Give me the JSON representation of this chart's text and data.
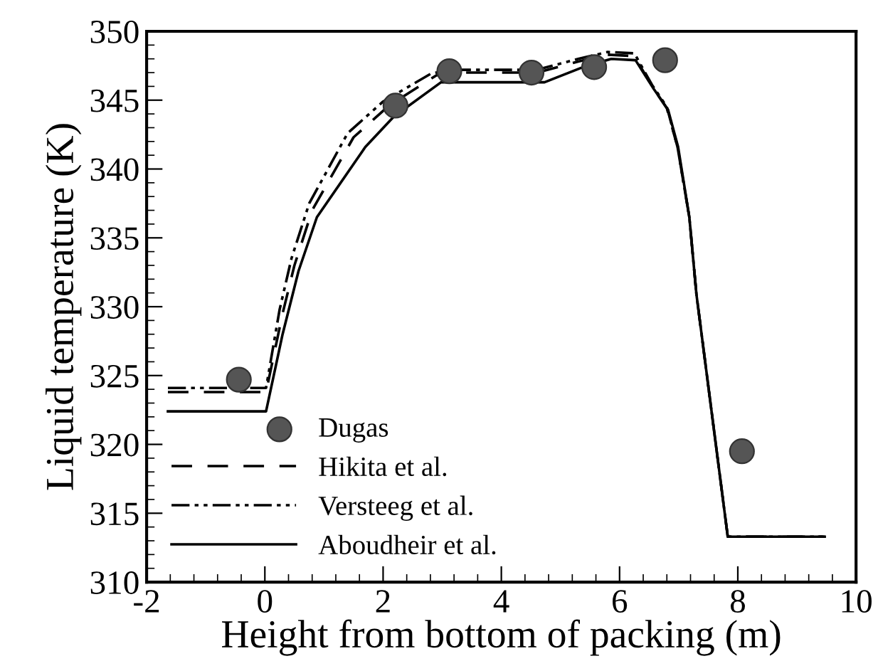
{
  "chart_data": {
    "type": "line",
    "xlabel": "Height from bottom of packing (m)",
    "ylabel": "Liquid temperature (K)",
    "xlim": [
      -2,
      10
    ],
    "ylim": [
      310,
      350
    ],
    "xticks": [
      -2,
      0,
      2,
      4,
      6,
      8,
      10
    ],
    "yticks": [
      310,
      315,
      320,
      325,
      330,
      335,
      340,
      345,
      350
    ],
    "grid": false,
    "legend": "bottom left",
    "series": [
      {
        "name": "Dugas",
        "type": "scatter",
        "marker": "circle",
        "color": "#555555",
        "x": [
          -0.44,
          2.21,
          3.12,
          4.51,
          5.57,
          6.77,
          8.07
        ],
        "values": [
          324.7,
          344.6,
          347.1,
          347.0,
          347.4,
          347.9,
          319.5
        ]
      },
      {
        "name": "Hikita et al.",
        "line_style": "dashed",
        "color": "#000000",
        "x": [
          -1.64,
          0.02,
          0.3,
          0.5,
          0.8,
          1.5,
          2.1,
          2.9,
          3.1,
          4.6,
          5.3,
          5.8,
          6.25,
          6.55,
          6.8,
          6.98,
          7.18,
          7.3,
          7.83,
          9.47
        ],
        "values": [
          323.8,
          323.8,
          329.5,
          333.0,
          337.0,
          342.3,
          344.6,
          346.8,
          347.0,
          347.0,
          347.8,
          348.3,
          348.2,
          346.0,
          344.4,
          341.6,
          336.5,
          330.9,
          313.3,
          313.3
        ]
      },
      {
        "name": "Versteeg et al.",
        "line_style": "dashdot",
        "color": "#000000",
        "x": [
          -1.64,
          0.02,
          0.25,
          0.45,
          0.75,
          1.4,
          2.0,
          2.8,
          3.1,
          4.6,
          5.3,
          5.8,
          6.25,
          6.55,
          6.8,
          6.98,
          7.18,
          7.3,
          7.83,
          9.47
        ],
        "values": [
          324.1,
          324.1,
          329.8,
          333.5,
          337.5,
          342.6,
          344.9,
          346.9,
          347.2,
          347.2,
          348.0,
          348.5,
          348.4,
          346.1,
          344.5,
          341.6,
          336.5,
          330.9,
          313.3,
          313.3
        ]
      },
      {
        "name": "Aboudheir et al.",
        "line_style": "solid",
        "color": "#000000",
        "x": [
          -1.64,
          0.02,
          0.3,
          0.57,
          0.88,
          1.7,
          2.18,
          2.98,
          4.73,
          5.38,
          5.86,
          6.27,
          6.58,
          6.82,
          6.99,
          7.18,
          7.3,
          7.83,
          9.47
        ],
        "values": [
          322.4,
          322.4,
          328.0,
          332.6,
          336.5,
          341.6,
          343.8,
          346.3,
          346.3,
          347.4,
          348.0,
          347.9,
          345.8,
          344.3,
          341.6,
          336.5,
          330.9,
          313.3,
          313.3
        ]
      }
    ]
  }
}
